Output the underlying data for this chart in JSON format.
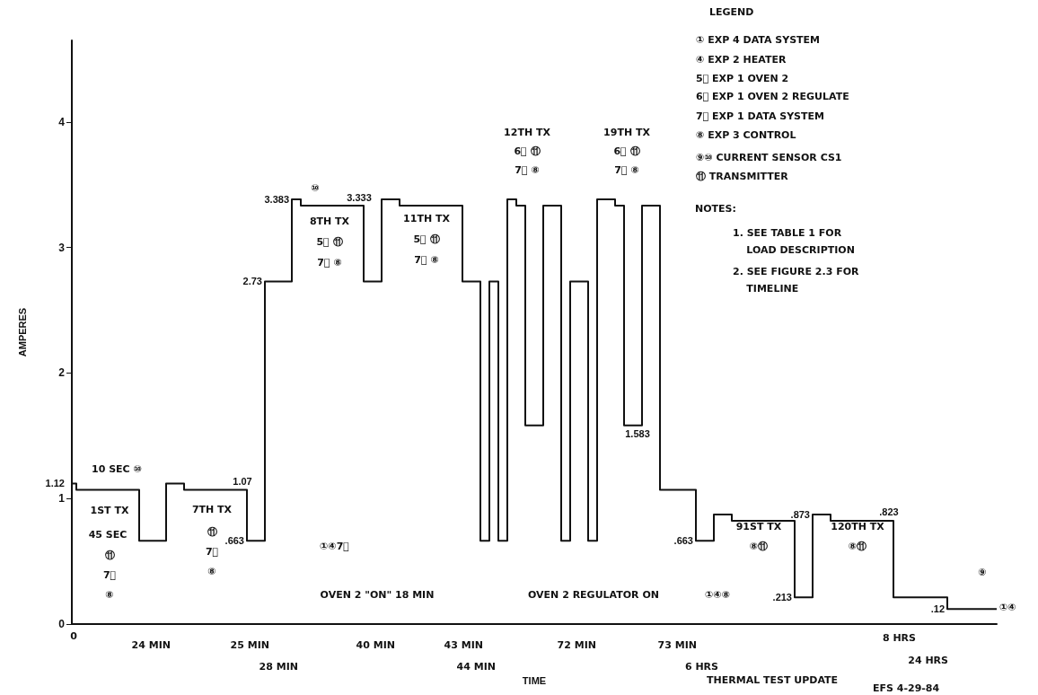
{
  "chart_data": {
    "type": "step",
    "xlabel": "TIME",
    "ylabel": "AMPERES",
    "categories": [
      null,
      null,
      null,
      null,
      null,
      null,
      null,
      null,
      null,
      null,
      null,
      null,
      null,
      null,
      null,
      null,
      null,
      null,
      null,
      null,
      null,
      null,
      null,
      null,
      null,
      null,
      null,
      null,
      null,
      null,
      null,
      null,
      null,
      null,
      null,
      null,
      null,
      null,
      null,
      null,
      null,
      null,
      null,
      null,
      null,
      null,
      null,
      null,
      null,
      null,
      null,
      null,
      null,
      null,
      null,
      null,
      null,
      null,
      null,
      null,
      null,
      null,
      null,
      null,
      null,
      null,
      null,
      null,
      null,
      null,
      null,
      null,
      null,
      null,
      null,
      null,
      null,
      null,
      null,
      null,
      null,
      null,
      null,
      null,
      null,
      null,
      null,
      null,
      null,
      null,
      null,
      null,
      null,
      null,
      null,
      null,
      null,
      null,
      null,
      null,
      null,
      null,
      null,
      null
    ],
    "values": [
      1.12,
      1.07,
      1.07,
      1.07,
      1.07,
      1.07,
      1.07,
      1.07,
      0.663,
      0.663,
      0.663,
      1.12,
      1.12,
      1.07,
      1.07,
      1.07,
      1.07,
      1.07,
      1.07,
      1.07,
      0.663,
      0.663,
      2.73,
      2.73,
      2.73,
      3.383,
      3.333,
      3.333,
      3.333,
      3.333,
      3.333,
      3.333,
      3.333,
      2.73,
      2.73,
      3.383,
      3.383,
      3.333,
      3.333,
      3.333,
      3.333,
      3.333,
      3.333,
      3.333,
      2.73,
      2.73,
      0.663,
      2.73,
      0.663,
      3.383,
      3.333,
      1.583,
      1.583,
      3.333,
      3.333,
      0.663,
      2.73,
      2.73,
      0.663,
      3.383,
      3.383,
      3.333,
      1.583,
      1.583,
      3.333,
      3.333,
      1.07,
      1.07,
      1.07,
      1.07,
      0.663,
      0.663,
      0.873,
      0.873,
      0.823,
      0.823,
      0.823,
      0.823,
      0.823,
      0.823,
      0.823,
      0.213,
      0.213,
      0.873,
      0.873,
      0.823,
      0.823,
      0.823,
      0.823,
      0.823,
      0.823,
      0.823,
      0.213,
      0.213,
      0.213,
      0.213,
      0.213,
      0.213,
      0.12,
      0.12,
      0.12,
      0.12,
      0.12,
      0.12
    ],
    "value_labels": [
      "1.12",
      null,
      null,
      null,
      null,
      null,
      null,
      null,
      null,
      null,
      null,
      null,
      null,
      null,
      null,
      null,
      null,
      null,
      null,
      "1.07",
      ".663",
      null,
      "2.73",
      null,
      null,
      "3.383",
      null,
      null,
      null,
      null,
      null,
      null,
      "3.333",
      null,
      null,
      null,
      null,
      null,
      null,
      null,
      null,
      null,
      null,
      null,
      null,
      null,
      null,
      null,
      null,
      null,
      null,
      null,
      null,
      null,
      null,
      null,
      null,
      null,
      null,
      null,
      null,
      null,
      null,
      "1.583",
      null,
      null,
      null,
      null,
      null,
      null,
      ".663",
      null,
      null,
      null,
      null,
      null,
      null,
      null,
      null,
      null,
      null,
      ".213",
      null,
      ".873",
      null,
      null,
      null,
      null,
      null,
      null,
      null,
      ".823",
      null,
      null,
      null,
      null,
      null,
      null,
      ".12",
      null,
      null,
      null,
      null,
      null
    ],
    "color": "#111111",
    "ylim": [
      0,
      4.65
    ],
    "yticks": [
      0,
      1,
      2,
      3,
      4
    ],
    "tick_labels": "y",
    "annotations": [
      "LEGEND",
      "① EXP 4 DATA SYSTEM",
      "④ EXP 2 HEATER",
      "5⃞ EXP 1 OVEN 2",
      "6⃞ EXP 1 OVEN 2 REGULATE",
      "7⃞ EXP 1 DATA SYSTEM",
      "⑧ EXP 3 CONTROL",
      "⑨⑩ CURRENT SENSOR CS1",
      "⑪ TRANSMITTER",
      "NOTES:",
      "1. SEE TABLE 1 FOR\n    LOAD DESCRIPTION",
      "2. SEE FIGURE 2.3 FOR\n    TIMELINE",
      "1ST TX",
      "⑪\n7⃞\n⑧",
      "45 SEC",
      "10 SEC ⑩",
      "7TH TX",
      "⑪\n7⃞\n⑧",
      "①④7⃞",
      "⑩",
      "8TH TX\n5⃞ ⑪\n7⃞ ⑧",
      "11TH TX\n5⃞ ⑪\n7⃞ ⑧",
      "12TH TX\n6⃞ ⑪\n7⃞ ⑧",
      "19TH TX\n6⃞ ⑪\n7⃞ ⑧",
      "91ST TX\n⑧⑪",
      "120TH TX\n⑧⑪",
      "⑨",
      "①④",
      "OVEN 2 \"ON\" 18 MIN",
      "OVEN 2 REGULATOR ON",
      "①④⑧",
      "24 MIN",
      "25 MIN",
      "28 MIN",
      "40 MIN",
      "43 MIN",
      "44 MIN",
      "72 MIN",
      "73 MIN",
      "6 HRS",
      "8 HRS",
      "24 HRS",
      "THERMAL TEST UPDATE",
      "EFS 4-29-84",
      "0"
    ]
  }
}
